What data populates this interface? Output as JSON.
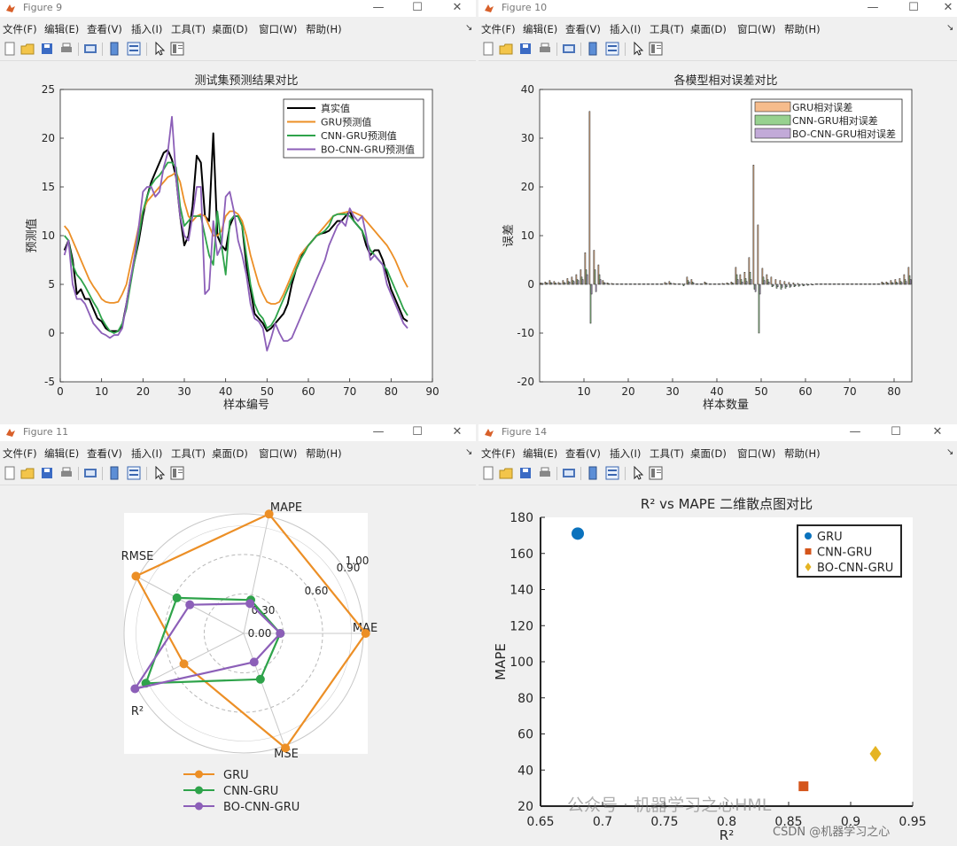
{
  "menu": [
    "文件(F)",
    "编辑(E)",
    "查看(V)",
    "插入(I)",
    "工具(T)",
    "桌面(D)",
    "窗口(W)",
    "帮助(H)"
  ],
  "window_controls": {
    "minimize": "—",
    "maximize": "☐",
    "close": "✕"
  },
  "colors": {
    "black": "#000000",
    "orange": "#ec8f26",
    "green": "#2ea34a",
    "purple": "#8c5fb8",
    "blue": "#0a72bd",
    "rust": "#d4551b",
    "gold": "#e5b422",
    "bar_orange": "#f6bc8c",
    "bar_green": "#97d18f",
    "bar_purple": "#c2aad8"
  },
  "windows": {
    "fig9": {
      "title": "Figure 9"
    },
    "fig10": {
      "title": "Figure 10"
    },
    "fig11": {
      "title": "Figure 11"
    },
    "fig14": {
      "title": "Figure 14"
    }
  },
  "chart_data": [
    {
      "id": "fig9",
      "type": "line",
      "title": "测试集预测结果对比",
      "xlabel": "样本编号",
      "ylabel": "预测值",
      "xlim": [
        0,
        90
      ],
      "ylim": [
        -5,
        25
      ],
      "xticks": [
        0,
        10,
        20,
        30,
        40,
        50,
        60,
        70,
        80,
        90
      ],
      "yticks": [
        -5,
        0,
        5,
        10,
        15,
        20,
        25
      ],
      "legend": "top-right",
      "grid": false,
      "x": [
        1,
        2,
        3,
        4,
        5,
        6,
        7,
        8,
        9,
        10,
        11,
        12,
        13,
        14,
        15,
        16,
        17,
        18,
        19,
        20,
        21,
        22,
        23,
        24,
        25,
        26,
        27,
        28,
        29,
        30,
        31,
        32,
        33,
        34,
        35,
        36,
        37,
        38,
        39,
        40,
        41,
        42,
        43,
        44,
        45,
        46,
        47,
        48,
        49,
        50,
        51,
        52,
        53,
        54,
        55,
        56,
        57,
        58,
        59,
        60,
        61,
        62,
        63,
        64,
        65,
        66,
        67,
        68,
        69,
        70,
        71,
        72,
        73,
        74,
        75,
        76,
        77,
        78,
        79,
        80,
        81,
        82,
        83,
        84
      ],
      "series": [
        {
          "name": "真实值",
          "color": "#000000",
          "values": [
            8.5,
            9.5,
            7.5,
            4,
            4.5,
            3.5,
            3.5,
            2.5,
            1.5,
            1.2,
            0.5,
            0.2,
            0.2,
            0.2,
            0.8,
            3,
            5.5,
            7.5,
            9.5,
            12,
            14,
            15.5,
            16.5,
            17.5,
            18.5,
            18.8,
            17.8,
            16,
            12,
            9,
            10,
            13,
            18.2,
            17.5,
            12,
            11.5,
            20.5,
            10,
            9,
            8.5,
            11,
            12,
            12,
            11,
            7,
            4.5,
            2,
            1.5,
            1,
            0.2,
            0.5,
            1,
            1.5,
            2,
            3,
            5,
            6.5,
            7.5,
            8.5,
            9,
            9.5,
            10,
            10.2,
            10.3,
            10.5,
            11,
            11.5,
            11.5,
            12,
            12.5,
            11.5,
            11,
            10.5,
            9,
            8,
            8.5,
            8.5,
            7.5,
            6,
            4.5,
            3.5,
            2.5,
            1.5,
            1.2
          ]
        },
        {
          "name": "GRU预测值",
          "color": "#ec8f26",
          "values": [
            11,
            10.5,
            9.5,
            8.5,
            7.5,
            6.5,
            5.5,
            4.8,
            4.2,
            3.5,
            3.2,
            3.1,
            3.1,
            3.2,
            4,
            5,
            7,
            9,
            11,
            12.5,
            13.5,
            14,
            14.5,
            15,
            15.5,
            16,
            16.2,
            16.5,
            15.5,
            13.5,
            12,
            11.5,
            12,
            12.2,
            12,
            11,
            10,
            10,
            10.5,
            12,
            12.5,
            12.5,
            12.2,
            11.5,
            10,
            8,
            6.5,
            5,
            4,
            3.2,
            3,
            3,
            3.2,
            4,
            5,
            6,
            7,
            8,
            8.5,
            9,
            9.5,
            10,
            10.5,
            11,
            11.5,
            12,
            12.2,
            12.3,
            12.4,
            12.5,
            12.4,
            12.2,
            12,
            11.5,
            11,
            10.5,
            10,
            9.5,
            9,
            8.3,
            7.5,
            6.5,
            5.5,
            4.7
          ]
        },
        {
          "name": "CNN-GRU预测值",
          "color": "#2ea34a",
          "values": [
            10,
            9.5,
            7,
            6,
            5.5,
            4.8,
            4,
            3.2,
            2.5,
            1.5,
            0.8,
            0.2,
            0,
            0.2,
            1,
            2.5,
            5,
            7.5,
            10,
            12.5,
            14,
            15.2,
            15.8,
            16.2,
            16.8,
            17.5,
            17.5,
            17,
            13,
            11,
            11.5,
            12,
            12,
            12,
            10,
            8,
            7,
            12.5,
            9,
            6,
            11.5,
            12,
            12,
            11,
            8,
            5,
            3,
            2,
            1.5,
            0.5,
            0.8,
            1.5,
            2.5,
            3.5,
            4.5,
            5.5,
            6.5,
            7.5,
            8.2,
            9,
            9.5,
            10,
            10.2,
            10.5,
            11,
            12,
            12.2,
            12.2,
            12.2,
            12,
            11.5,
            11,
            10.5,
            9.5,
            8.5,
            8,
            7.5,
            7,
            6.5,
            5.5,
            4.5,
            3.5,
            2.5,
            1.8
          ]
        },
        {
          "name": "BO-CNN-GRU预测值",
          "color": "#8c5fb8",
          "values": [
            8,
            9.5,
            5,
            3.5,
            3.5,
            3,
            2,
            1,
            0.5,
            0,
            -0.2,
            -0.5,
            -0.2,
            -0.2,
            0.5,
            3,
            5.5,
            8,
            11,
            14.5,
            15,
            15,
            14,
            14.5,
            17,
            18.5,
            22.2,
            16,
            12,
            10,
            9.5,
            12,
            15,
            15,
            4,
            4.5,
            11.5,
            8,
            9,
            14,
            14.5,
            12.5,
            9.5,
            8,
            6,
            3,
            1.5,
            1.2,
            0.5,
            -1.8,
            -0.5,
            1,
            0,
            -0.8,
            -0.8,
            -0.5,
            0.5,
            1.5,
            2.5,
            3.5,
            4.5,
            5.5,
            6.5,
            7.5,
            9,
            10,
            11,
            11.5,
            11,
            12.8,
            12,
            11.5,
            12,
            10,
            7.5,
            8,
            7.5,
            7,
            5,
            4,
            3,
            2,
            1,
            0.5
          ]
        }
      ]
    },
    {
      "id": "fig10",
      "type": "bar",
      "title": "各模型相对误差对比",
      "xlabel": "样本数量",
      "ylabel": "误差",
      "xlim": [
        1,
        84
      ],
      "ylim": [
        -20,
        40
      ],
      "xticks": [
        10,
        20,
        30,
        40,
        50,
        60,
        70,
        80
      ],
      "yticks": [
        -20,
        -10,
        0,
        10,
        20,
        30,
        40
      ],
      "legend": "top-right",
      "grid": false,
      "x": [
        1,
        2,
        3,
        4,
        5,
        6,
        7,
        8,
        9,
        10,
        11,
        12,
        13,
        14,
        15,
        16,
        17,
        18,
        19,
        20,
        21,
        22,
        23,
        24,
        25,
        26,
        27,
        28,
        29,
        30,
        31,
        32,
        33,
        34,
        35,
        36,
        37,
        38,
        39,
        40,
        41,
        42,
        43,
        44,
        45,
        46,
        47,
        48,
        49,
        50,
        51,
        52,
        53,
        54,
        55,
        56,
        57,
        58,
        59,
        60,
        61,
        62,
        63,
        64,
        65,
        66,
        67,
        68,
        69,
        70,
        71,
        72,
        73,
        74,
        75,
        76,
        77,
        78,
        79,
        80,
        81,
        82,
        83,
        84
      ],
      "series": [
        {
          "name": "GRU相对误差",
          "color": "#f6bc8c",
          "values": [
            0.3,
            0.5,
            0.8,
            0.6,
            0.4,
            0.8,
            1.2,
            1.5,
            2,
            3,
            6.5,
            35.5,
            7,
            4,
            0.8,
            0.3,
            0.2,
            0.1,
            0.1,
            0.1,
            0.1,
            0.1,
            0.1,
            0.1,
            0.1,
            0.1,
            0.1,
            0.1,
            0.4,
            0.6,
            0.2,
            0.1,
            0.1,
            1.5,
            1,
            0.1,
            0.1,
            0.5,
            0.1,
            0.1,
            0.1,
            0.2,
            0.3,
            0.5,
            3.5,
            2,
            2.5,
            5.5,
            24.5,
            12.2,
            3.3,
            2,
            1.5,
            1,
            0.8,
            0.6,
            0.4,
            0.3,
            0.2,
            0.1,
            0.1,
            0.1,
            0.1,
            0.1,
            0.1,
            0.1,
            0.1,
            0.1,
            0.1,
            0.1,
            0.1,
            0.1,
            0.1,
            0.1,
            0.1,
            0.1,
            0.1,
            0.5,
            0.5,
            0.8,
            1,
            1.2,
            2,
            3.5
          ]
        },
        {
          "name": "CNN-GRU相对误差",
          "color": "#97d18f",
          "values": [
            0.2,
            0.3,
            0.4,
            0.3,
            0.2,
            0.4,
            0.6,
            0.8,
            1,
            1.5,
            3,
            -8,
            3,
            2,
            0.4,
            0.2,
            0.1,
            0.1,
            0.1,
            0.1,
            0.1,
            0.1,
            0.1,
            0.1,
            0.1,
            0.1,
            0.1,
            0.1,
            0.2,
            0.3,
            0.1,
            0.1,
            -0.3,
            0.8,
            0.5,
            0.1,
            0.1,
            0.3,
            0.1,
            0.1,
            0.1,
            0.1,
            0.2,
            0.3,
            2,
            1,
            1.2,
            2.5,
            -1,
            -10,
            1.5,
            1,
            -0.5,
            -0.8,
            -1,
            -0.8,
            -0.6,
            -0.5,
            -0.4,
            -0.3,
            -0.2,
            -0.1,
            0.1,
            0.1,
            0.1,
            0.1,
            0.1,
            0.1,
            0.1,
            0.1,
            0.1,
            0.1,
            0.1,
            0.1,
            0.1,
            0.1,
            0.1,
            0.3,
            0.3,
            0.4,
            0.5,
            0.6,
            1,
            1.8
          ]
        },
        {
          "name": "BO-CNN-GRU相对误差",
          "color": "#c2aad8",
          "values": [
            0.2,
            0.3,
            0.3,
            0.2,
            0.2,
            0.3,
            0.5,
            0.6,
            0.8,
            1,
            2,
            -2,
            -1.5,
            1,
            0.3,
            0.1,
            0.1,
            0.1,
            0.1,
            0.1,
            0.1,
            0.1,
            0.1,
            0.1,
            0.1,
            0.1,
            0.1,
            0.1,
            0.2,
            0.2,
            0.1,
            0.1,
            0.1,
            0.5,
            0.3,
            0.1,
            0.1,
            0.2,
            0.1,
            0.1,
            0.1,
            0.1,
            0.1,
            0.2,
            1,
            0.5,
            0.6,
            1,
            -1.5,
            -2,
            0.8,
            0.5,
            -0.3,
            -0.5,
            -0.6,
            -0.5,
            -0.4,
            -0.3,
            -0.2,
            -0.2,
            -0.1,
            -0.1,
            0.1,
            0.1,
            0.1,
            0.1,
            0.1,
            0.1,
            0.1,
            0.1,
            0.1,
            0.1,
            0.1,
            0.1,
            0.1,
            0.1,
            0.1,
            0.2,
            0.2,
            0.3,
            0.3,
            0.4,
            0.6,
            1
          ]
        }
      ]
    },
    {
      "id": "fig11",
      "type": "radar",
      "axes": [
        "MAE",
        "MAPE",
        "RMSE",
        "R²",
        "MSE"
      ],
      "rlim": [
        0,
        1
      ],
      "rticks": [
        "0.00",
        "0.30",
        "0.60",
        "0.90",
        "1.00"
      ],
      "rtick_values": [
        0,
        0.3,
        0.6,
        0.9,
        1.0
      ],
      "legend": "bottom",
      "series": [
        {
          "name": "GRU",
          "color": "#ec8f26",
          "values": [
            1.0,
            1.0,
            1.0,
            0.55,
            1.0
          ]
        },
        {
          "name": "CNN-GRU",
          "color": "#2ea34a",
          "values": [
            0.3,
            0.28,
            0.62,
            0.9,
            0.4
          ]
        },
        {
          "name": "BO-CNN-GRU",
          "color": "#8c5fb8",
          "values": [
            0.3,
            0.25,
            0.5,
            1.0,
            0.25
          ]
        }
      ]
    },
    {
      "id": "fig14",
      "type": "scatter",
      "title": "R² vs MAPE 二维散点图对比",
      "xlabel": "R²",
      "ylabel": "MAPE",
      "xlim": [
        0.65,
        0.95
      ],
      "ylim": [
        20,
        180
      ],
      "xticks": [
        0.65,
        0.7,
        0.75,
        0.8,
        0.85,
        0.9,
        0.95
      ],
      "xtick_labels": [
        "0.65",
        "0.7",
        "0.75",
        "0.8",
        "0.85",
        "0.9",
        "0.95"
      ],
      "yticks": [
        20,
        40,
        60,
        80,
        100,
        120,
        140,
        160,
        180
      ],
      "legend": "top-right",
      "grid": false,
      "series": [
        {
          "name": "GRU",
          "color": "#0a72bd",
          "marker": "circle",
          "x": [
            0.68
          ],
          "y": [
            171
          ]
        },
        {
          "name": "CNN-GRU",
          "color": "#d4551b",
          "marker": "square",
          "x": [
            0.862
          ],
          "y": [
            31
          ]
        },
        {
          "name": "BO-CNN-GRU",
          "color": "#e5b422",
          "marker": "diamond",
          "x": [
            0.92
          ],
          "y": [
            49
          ]
        }
      ]
    }
  ],
  "watermark": "公众号 · 机器学习之心HML",
  "csdn": "CSDN @机器学习之心"
}
